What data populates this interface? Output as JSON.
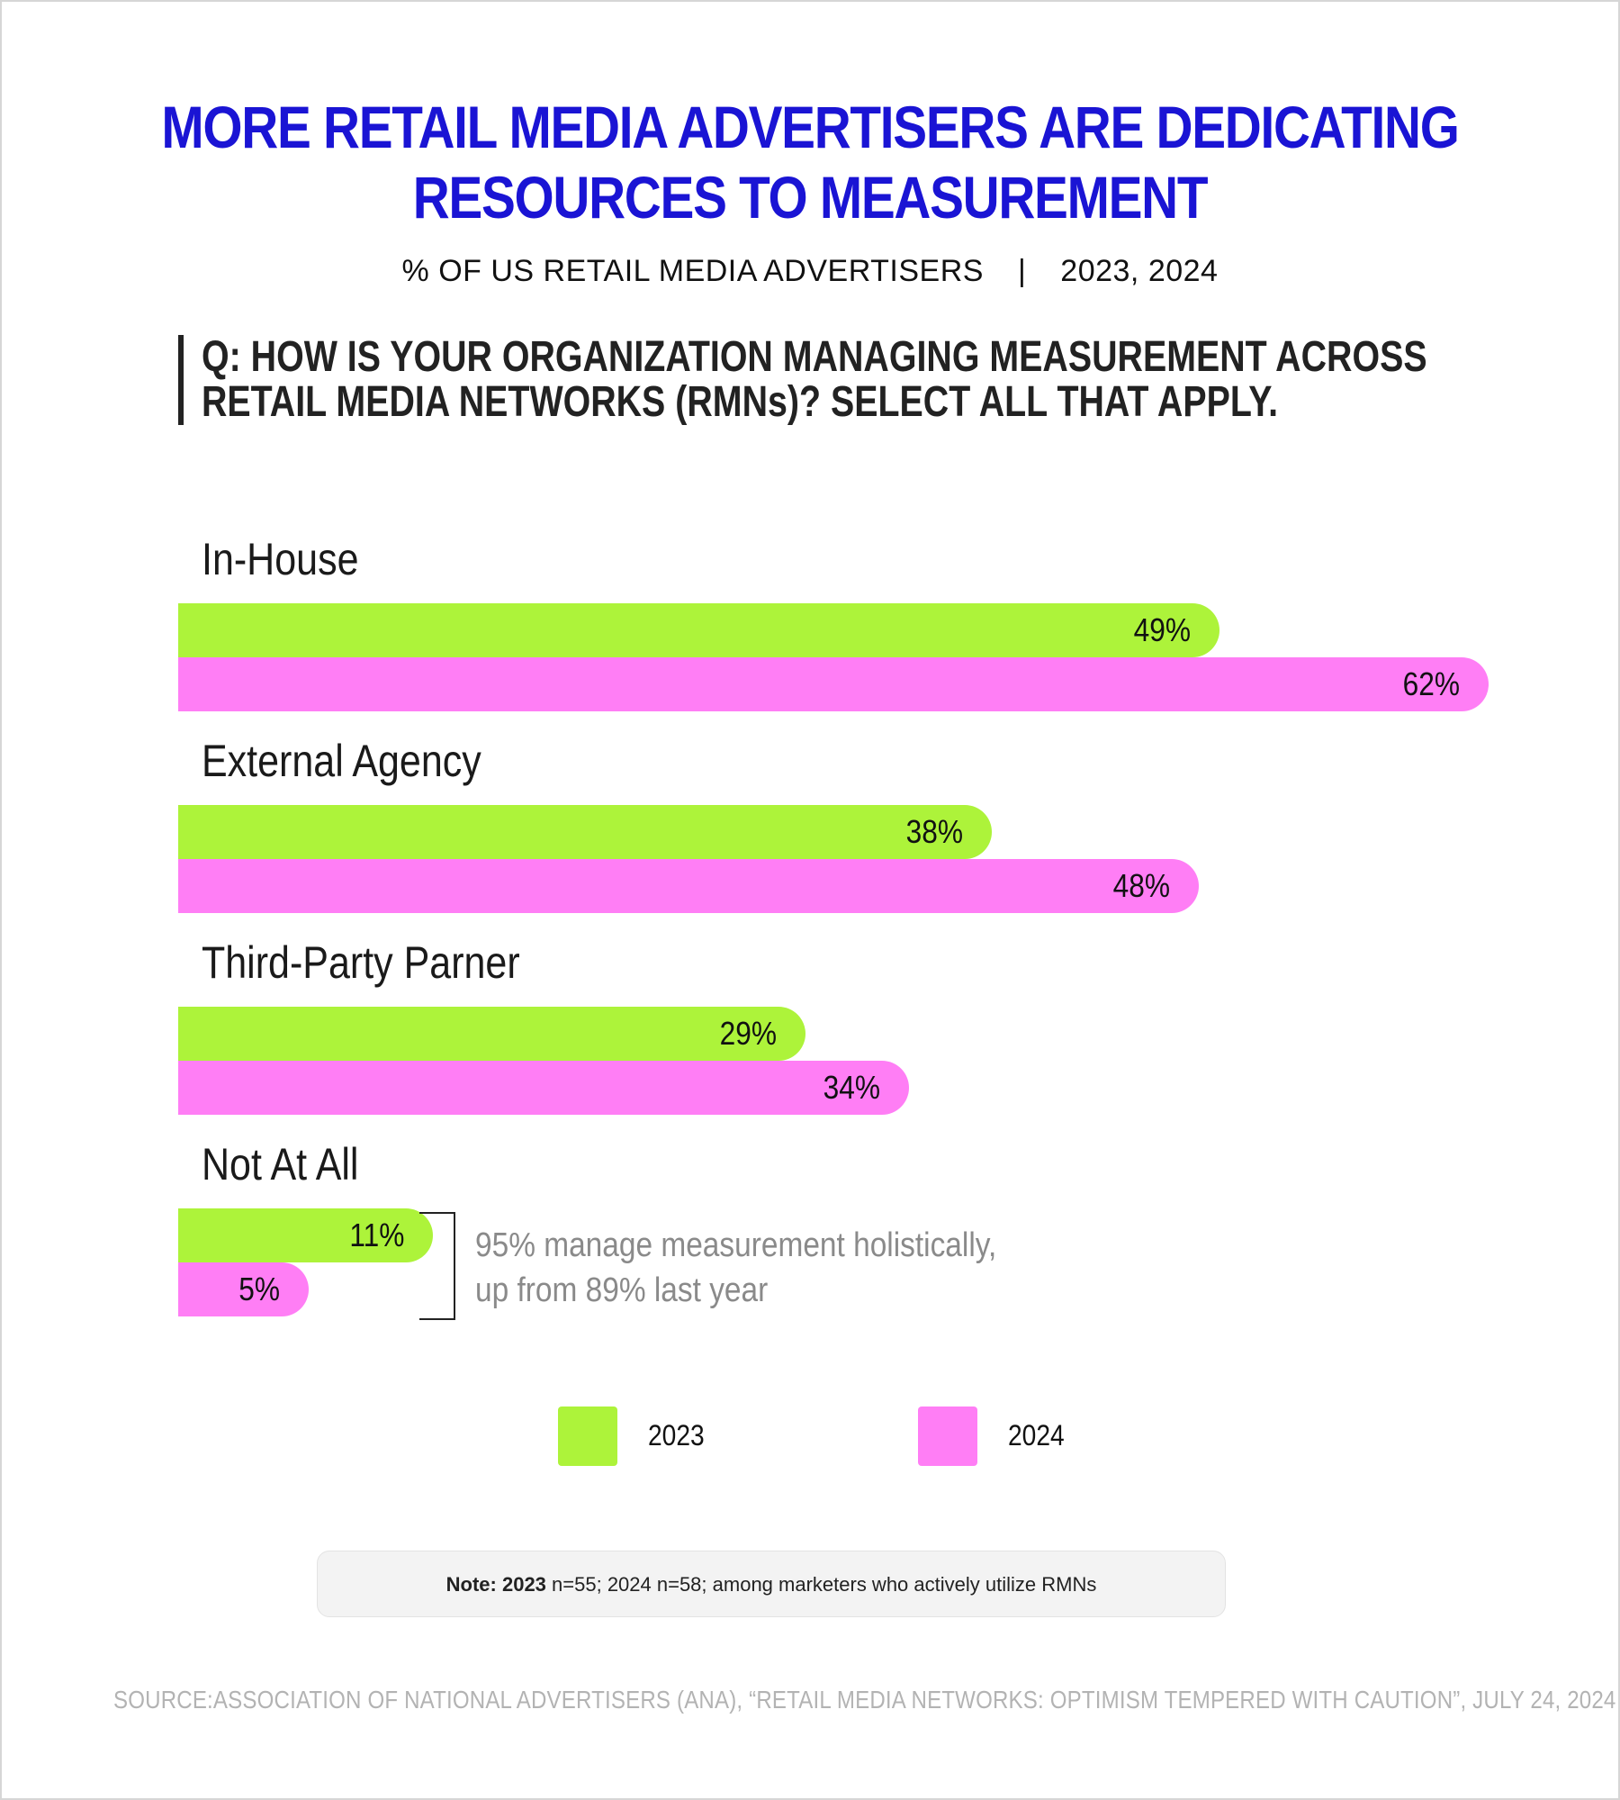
{
  "header": {
    "title_line1": "MORE RETAIL MEDIA ADVERTISERS ARE DEDICATING",
    "title_line2": "RESOURCES TO MEASUREMENT",
    "subtitle_left": "% OF US RETAIL MEDIA ADVERTISERS",
    "subtitle_sep": "|",
    "subtitle_right": "2023, 2024",
    "question_line1": "Q: HOW IS YOUR ORGANIZATION MANAGING MEASUREMENT ACROSS",
    "question_line2": "RETAIL MEDIA NETWORKS (RMNs)? SELECT ALL THAT APPLY."
  },
  "chart_data": {
    "type": "bar",
    "orientation": "horizontal",
    "title": "MORE RETAIL MEDIA ADVERTISERS ARE DEDICATING RESOURCES TO MEASUREMENT",
    "subtitle": "% OF US RETAIL MEDIA ADVERTISERS | 2023, 2024",
    "categories": [
      "In-House",
      "External Agency",
      "Third-Party Parner",
      "Not At All"
    ],
    "series": [
      {
        "name": "2023",
        "values": [
          49,
          38,
          29,
          11
        ],
        "labels": [
          "49%",
          "38%",
          "29%",
          "11%"
        ],
        "color": "#adf33a"
      },
      {
        "name": "2024",
        "values": [
          62,
          48,
          34,
          5
        ],
        "labels": [
          "62%",
          "48%",
          "34%",
          "5%"
        ],
        "color": "#ff7ef5"
      }
    ],
    "unit": "%",
    "grid": false,
    "legend_position": "bottom",
    "annotation_line1": "95% manage measurement holistically,",
    "annotation_line2": "up from 89% last year"
  },
  "legend": [
    {
      "label": "2023",
      "color": "#adf33a"
    },
    {
      "label": "2024",
      "color": "#ff7ef5"
    }
  ],
  "note": {
    "prefix": "Note: 2023",
    "text": " n=55; 2024 n=58; among marketers who actively utilize RMNs"
  },
  "source": "SOURCE:ASSOCIATION OF NATIONAL ADVERTISERS (ANA), “RETAIL MEDIA NETWORKS: OPTIMISM TEMPERED WITH CAUTION”, JULY 24, 2024",
  "colors": {
    "title": "#1a14d4",
    "series_2023": "#adf33a",
    "series_2024": "#ff7ef5",
    "annotation": "#8a8a8a",
    "source": "#b3b3b3"
  }
}
